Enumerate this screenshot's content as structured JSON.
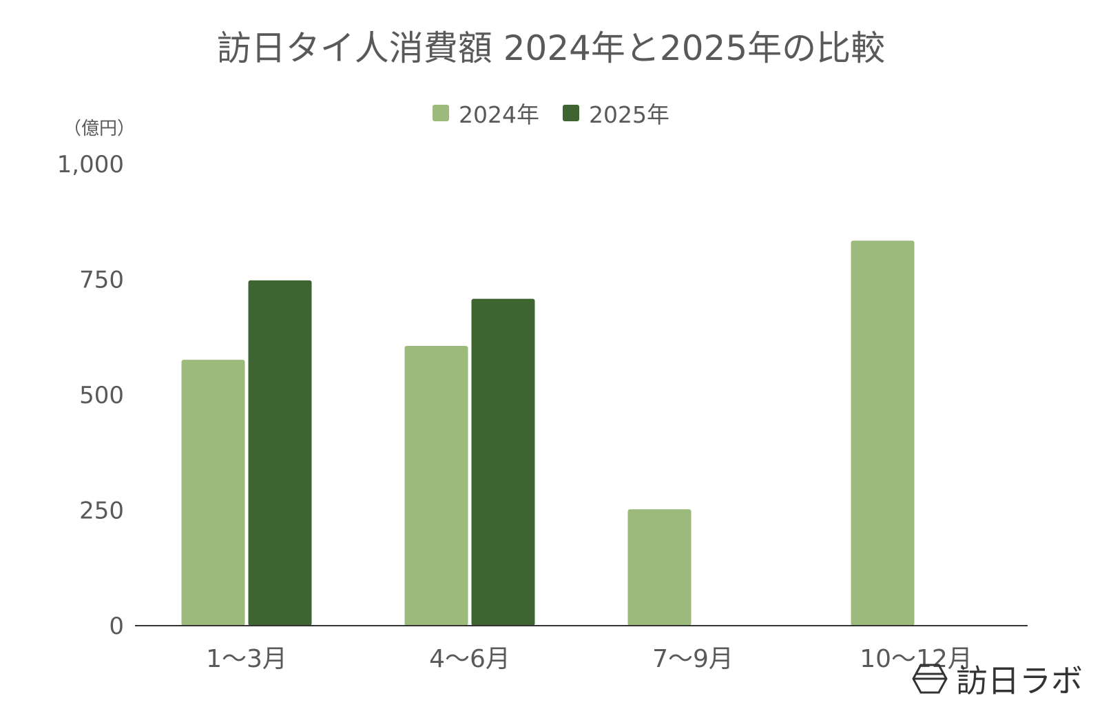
{
  "title": "訪日タイ人消費額 2024年と2025年の比較",
  "unit_label": "（億円）",
  "logo": {
    "text": "訪日ラボ",
    "icon": "hexagon-logo-icon"
  },
  "colors": {
    "s2024": "#9bba7c",
    "s2025": "#3e6531",
    "axis": "#333333",
    "text": "#595959"
  },
  "chart_data": {
    "type": "bar",
    "title": "訪日タイ人消費額 2024年と2025年の比較",
    "ylabel": "（億円）",
    "xlabel": "",
    "categories": [
      "1～3月",
      "4～6月",
      "7～9月",
      "10～12月"
    ],
    "series": [
      {
        "name": "2024年",
        "values": [
          576,
          606,
          252,
          834
        ]
      },
      {
        "name": "2025年",
        "values": [
          748,
          708,
          null,
          null
        ]
      }
    ],
    "ylim": [
      0,
      1000
    ],
    "yticks": [
      0,
      250,
      500,
      750,
      1000
    ],
    "ytick_labels": [
      "0",
      "250",
      "500",
      "750",
      "1,000"
    ],
    "grid": false,
    "legend": "top-center"
  }
}
